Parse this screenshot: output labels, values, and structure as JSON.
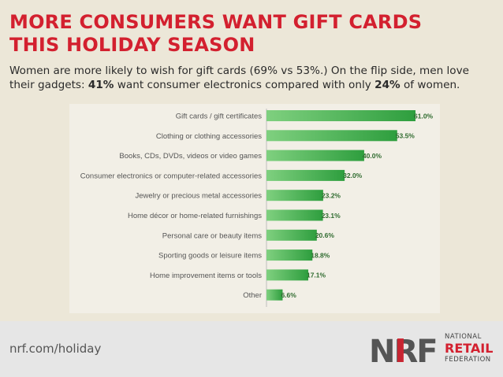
{
  "headline": {
    "line1": "MORE CONSUMERS WANT GIFT CARDS",
    "line2": "THIS HOLIDAY SEASON"
  },
  "subtitle": {
    "part1": "Women are more likely to wish for gift cards (69% vs 53%.) On the flip side, men love their gadgets: ",
    "men_pct": "41%",
    "part2": " want consumer electronics compared with only ",
    "women_pct": "24%",
    "part3": " of women."
  },
  "footer": {
    "url": "nrf.com/holiday",
    "logo_mark": "NRF",
    "logo_line1": "NATIONAL",
    "logo_line2": "RETAIL",
    "logo_line3": "FEDERATION"
  },
  "colors": {
    "headline": "#d3202f",
    "bar_light": "#7fd07f",
    "bar_dark": "#2e9e3e",
    "value_text": "#2f6b2f"
  },
  "chart_data": {
    "type": "bar",
    "orientation": "horizontal",
    "title": "",
    "xlabel": "",
    "ylabel": "",
    "grid": false,
    "legend": "none",
    "xlim": [
      0,
      70
    ],
    "categories": [
      "Gift cards / gift certificates",
      "Clothing or clothing accessories",
      "Books, CDs, DVDs, videos or video games",
      "Consumer electronics or computer-related accessories",
      "Jewelry or precious metal accessories",
      "Home décor or home-related furnishings",
      "Personal care or beauty items",
      "Sporting goods or leisure items",
      "Home improvement items or tools",
      "Other"
    ],
    "values": [
      61.0,
      53.5,
      40.0,
      32.0,
      23.2,
      23.1,
      20.6,
      18.8,
      17.1,
      6.6
    ],
    "value_labels": [
      "61.0%",
      "53.5%",
      "40.0%",
      "32.0%",
      "23.2%",
      "23.1%",
      "20.6%",
      "18.8%",
      "17.1%",
      "6.6%"
    ]
  }
}
